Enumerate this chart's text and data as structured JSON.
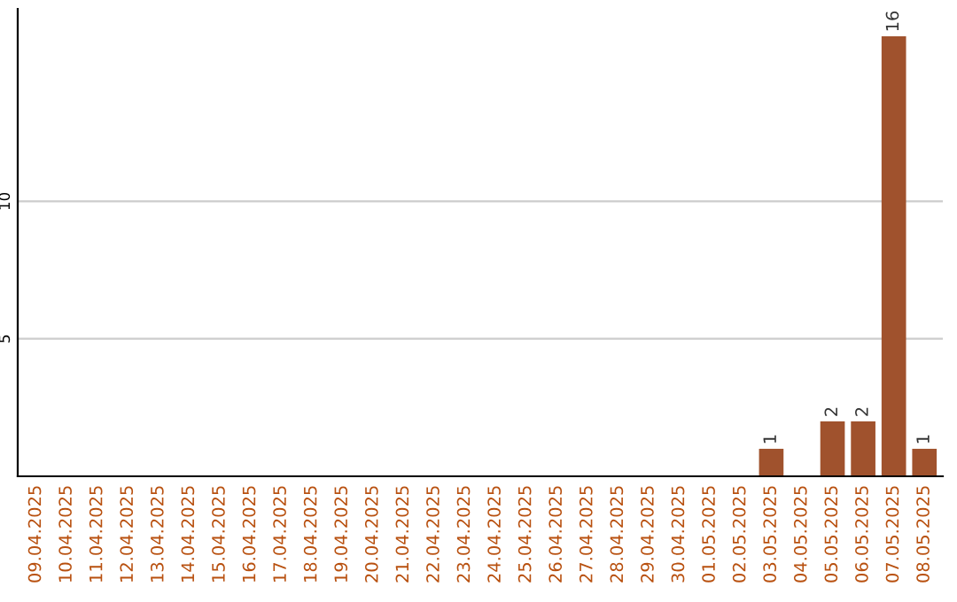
{
  "chart_data": {
    "type": "bar",
    "categories": [
      "09.04.2025",
      "10.04.2025",
      "11.04.2025",
      "12.04.2025",
      "13.04.2025",
      "14.04.2025",
      "15.04.2025",
      "16.04.2025",
      "17.04.2025",
      "18.04.2025",
      "19.04.2025",
      "20.04.2025",
      "21.04.2025",
      "22.04.2025",
      "23.04.2025",
      "24.04.2025",
      "25.04.2025",
      "26.04.2025",
      "27.04.2025",
      "28.04.2025",
      "29.04.2025",
      "30.04.2025",
      "01.05.2025",
      "02.05.2025",
      "03.05.2025",
      "04.05.2025",
      "05.05.2025",
      "06.05.2025",
      "07.05.2025",
      "08.05.2025"
    ],
    "values": [
      0,
      0,
      0,
      0,
      0,
      0,
      0,
      0,
      0,
      0,
      0,
      0,
      0,
      0,
      0,
      0,
      0,
      0,
      0,
      0,
      0,
      0,
      0,
      0,
      1,
      0,
      2,
      2,
      16,
      1
    ],
    "value_labels": [
      null,
      null,
      null,
      null,
      null,
      null,
      null,
      null,
      null,
      null,
      null,
      null,
      null,
      null,
      null,
      null,
      null,
      null,
      null,
      null,
      null,
      null,
      null,
      null,
      "1",
      null,
      "2",
      "2",
      "16",
      "1"
    ],
    "color": "#a0522d",
    "ylim": [
      0,
      17
    ],
    "yticks": [
      5,
      10
    ],
    "grid": "y"
  }
}
